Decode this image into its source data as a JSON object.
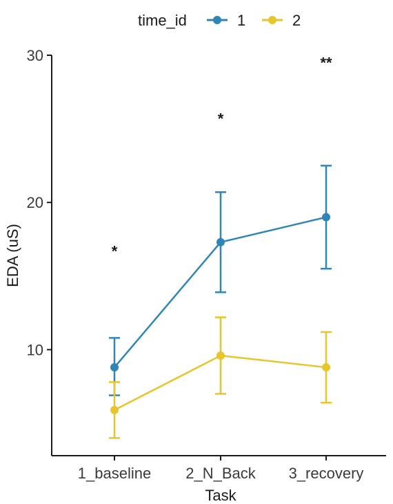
{
  "chart_data": {
    "type": "line",
    "title": "",
    "xlabel": "Task",
    "ylabel": "EDA (uS)",
    "categories": [
      "1_baseline",
      "2_N_Back",
      "3_recovery"
    ],
    "ylim": [
      2.8,
      30
    ],
    "yticks": [
      10,
      20,
      30
    ],
    "grid": false,
    "legend": {
      "title": "time_id",
      "position": "top"
    },
    "series": [
      {
        "name": "1",
        "color": "#2e86b8",
        "values": [
          8.8,
          17.3,
          19.0
        ],
        "lower": [
          6.9,
          13.9,
          15.5
        ],
        "upper": [
          10.8,
          20.7,
          22.5
        ]
      },
      {
        "name": "2",
        "color": "#e8c52a",
        "values": [
          5.9,
          9.6,
          8.8
        ],
        "lower": [
          4.0,
          7.0,
          6.4
        ],
        "upper": [
          7.8,
          12.2,
          11.2
        ]
      }
    ],
    "annotations": [
      {
        "category": "1_baseline",
        "text": "*",
        "y": 16.8
      },
      {
        "category": "2_N_Back",
        "text": "*",
        "y": 25.8
      },
      {
        "category": "3_recovery",
        "text": "**",
        "y": 29.6
      }
    ]
  }
}
